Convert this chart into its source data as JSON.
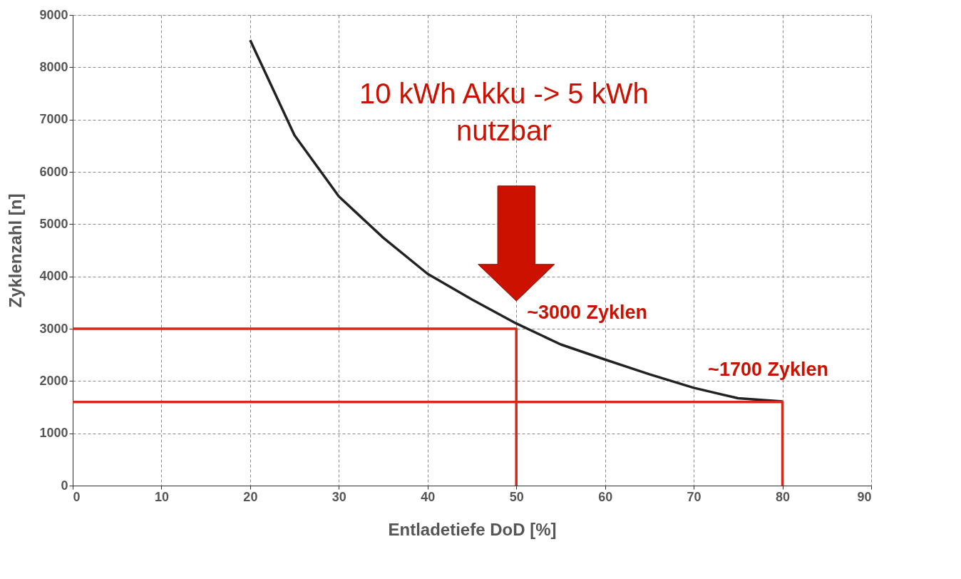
{
  "chart_data": {
    "type": "line",
    "xlabel": "Entladetiefe DoD [%]",
    "ylabel": "Zyklenzahl [n]",
    "xlim": [
      0,
      90
    ],
    "xticks": [
      0,
      10,
      20,
      30,
      40,
      50,
      60,
      70,
      80,
      90
    ],
    "ylim": [
      0,
      9000
    ],
    "yticks": [
      0,
      1000,
      2000,
      3000,
      4000,
      5000,
      6000,
      7000,
      8000,
      9000
    ],
    "grid": true,
    "line_style": "solid",
    "marker": "none",
    "series": [
      {
        "color": "#222222",
        "x": [
          20,
          25,
          30,
          35,
          40,
          45,
          50,
          55,
          60,
          65,
          70,
          75,
          80
        ],
        "values": [
          8520,
          6700,
          5530,
          4740,
          4050,
          3560,
          3100,
          2700,
          2410,
          2130,
          1870,
          1670,
          1610
        ]
      },
      {
        "color": "#d42a1a",
        "x": [
          0,
          50,
          50
        ],
        "values": [
          3000,
          3000,
          0
        ]
      },
      {
        "color": "#d42a1a",
        "x": [
          0,
          80,
          80
        ],
        "values": [
          1600,
          1600,
          0
        ]
      }
    ],
    "annotations": [
      "10 kWh Akku -> 5 kWh\nnutzbar",
      {
        "text": "~3000 Zyklen",
        "x": 50,
        "y": 3000
      },
      {
        "text": "~1700 Zyklen",
        "x": 80,
        "y": 1600
      }
    ]
  }
}
